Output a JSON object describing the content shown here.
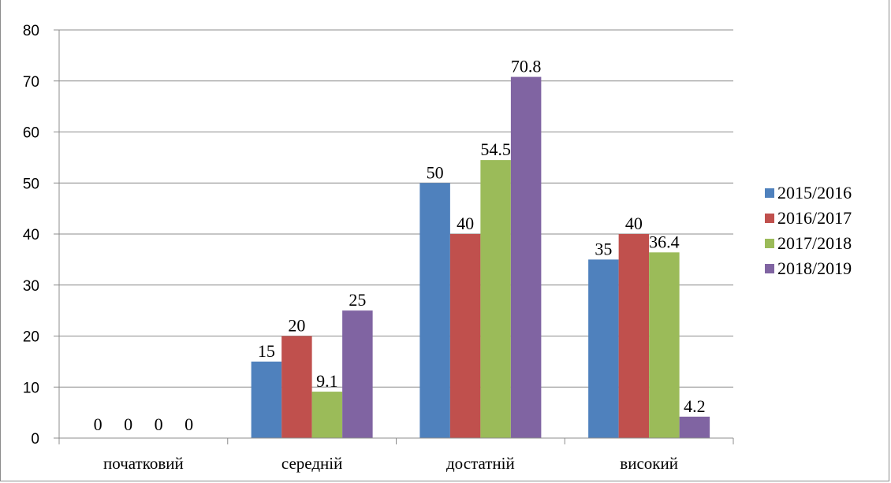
{
  "chart_data": {
    "type": "bar",
    "categories": [
      "початковий",
      "середній",
      "достатній",
      "високий"
    ],
    "series": [
      {
        "name": "2015/2016",
        "color": "#4F81BD",
        "values": [
          0,
          15,
          50,
          35
        ]
      },
      {
        "name": "2016/2017",
        "color": "#C0504D",
        "values": [
          0,
          20,
          40,
          40
        ]
      },
      {
        "name": "2017/2018",
        "color": "#9BBB59",
        "values": [
          0,
          9.1,
          54.5,
          36.4
        ]
      },
      {
        "name": "2018/2019",
        "color": "#8064A2",
        "values": [
          0,
          25,
          70.8,
          4.2
        ]
      }
    ],
    "data_labels": [
      [
        "0",
        "15",
        "50",
        "35"
      ],
      [
        "0",
        "20",
        "40",
        "40"
      ],
      [
        "0",
        "9.1",
        "54.5",
        "36.4"
      ],
      [
        "0",
        "25",
        "70.8",
        "4.2"
      ]
    ],
    "y_ticks": [
      "0",
      "10",
      "20",
      "30",
      "40",
      "50",
      "60",
      "70",
      "80"
    ],
    "ylim": [
      0,
      80
    ],
    "grid": true,
    "legend_position": "right",
    "title": "",
    "xlabel": "",
    "ylabel": ""
  }
}
